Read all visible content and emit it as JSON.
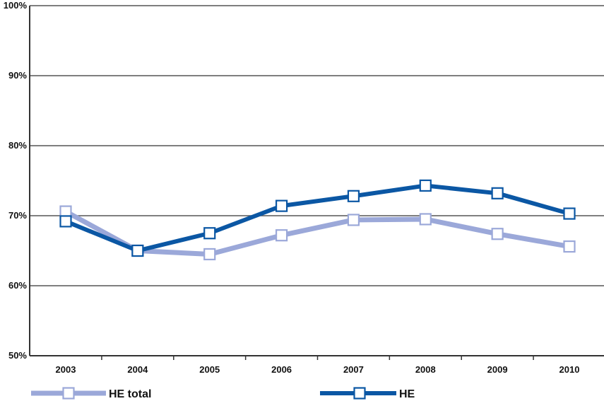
{
  "chart_data": {
    "type": "line",
    "title": "",
    "xlabel": "",
    "ylabel": "",
    "categories": [
      "2003",
      "2004",
      "2005",
      "2006",
      "2007",
      "2008",
      "2009",
      "2010"
    ],
    "yticks": [
      "50%",
      "60%",
      "70%",
      "80%",
      "90%",
      "100%"
    ],
    "ylim": [
      50,
      100
    ],
    "grid": true,
    "legend_position": "bottom",
    "series": [
      {
        "name": "HE total",
        "color": "#9BA8D9",
        "values": [
          70.6,
          65.0,
          64.5,
          67.2,
          69.4,
          69.5,
          67.4,
          65.6
        ]
      },
      {
        "name": "HE",
        "color": "#0B57A4",
        "values": [
          69.2,
          65.0,
          67.5,
          71.4,
          72.8,
          74.3,
          73.2,
          70.3
        ]
      }
    ]
  }
}
